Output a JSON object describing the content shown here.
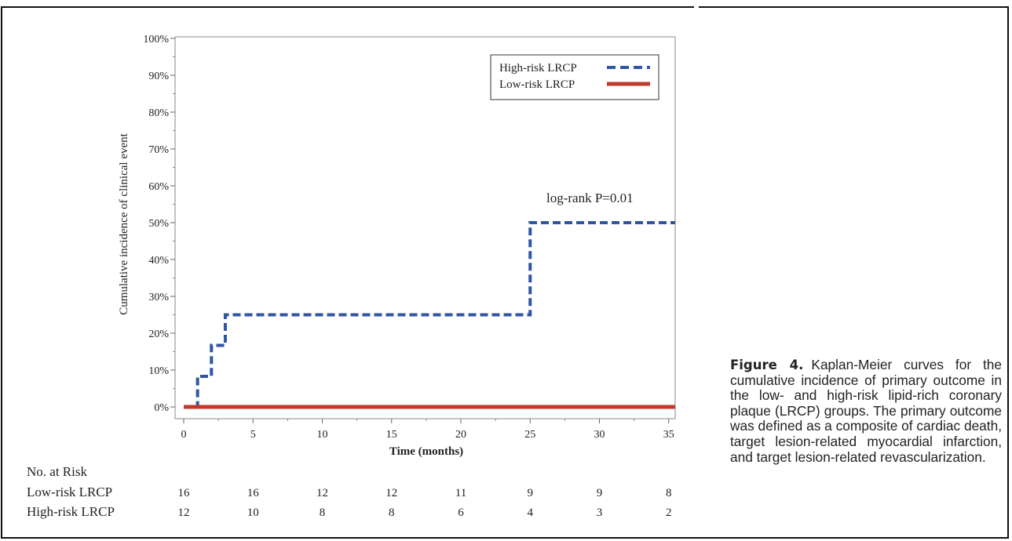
{
  "chart_data": {
    "type": "line",
    "subtype": "kaplan-meier step curves",
    "title": "",
    "xlabel": "Time (months)",
    "ylabel": "Cumulative incidence of clinical event",
    "xlim": [
      -0.5,
      36
    ],
    "ylim": [
      0,
      100
    ],
    "x_ticks": [
      0,
      5,
      10,
      15,
      20,
      25,
      30,
      35
    ],
    "y_ticks": [
      0,
      10,
      20,
      30,
      40,
      50,
      60,
      70,
      80,
      90,
      100
    ],
    "y_tick_labels": [
      "0%",
      "10%",
      "20%",
      "30%",
      "40%",
      "50%",
      "60%",
      "70%",
      "80%",
      "90%",
      "100%"
    ],
    "grid": false,
    "legend_position": "top-right",
    "series": [
      {
        "name": "High-risk LRCP",
        "color": "#2f55a4",
        "dash": "dashed",
        "x": [
          0,
          1,
          2,
          3,
          25,
          36
        ],
        "y": [
          0,
          8.3,
          16.7,
          25,
          50,
          50
        ]
      },
      {
        "name": "Low-risk LRCP",
        "color": "#c0392b",
        "dash": "solid",
        "x": [
          0,
          36
        ],
        "y": [
          0,
          0
        ]
      }
    ],
    "annotations": [
      {
        "text": "log-rank P=0.01"
      }
    ]
  },
  "risk_table": {
    "header": "No. at Risk",
    "times": [
      0,
      5,
      10,
      15,
      20,
      25,
      30,
      35
    ],
    "rows": [
      {
        "label": "Low-risk LRCP",
        "values": [
          "16",
          "16",
          "12",
          "12",
          "11",
          "9",
          "9",
          "8"
        ]
      },
      {
        "label": "High-risk LRCP",
        "values": [
          "12",
          "10",
          "8",
          "8",
          "6",
          "4",
          "3",
          "2"
        ]
      }
    ]
  },
  "caption": {
    "label": "Figure 4.",
    "text": "Kaplan-Meier curves for the cumulative incidence of primary outcome in the low- and high-risk lipid-rich coronary plaque (LRCP) groups. The primary outcome was defined as a composite of cardiac death, target lesion-related myocardial infarction, and target lesion-related revascularization."
  }
}
